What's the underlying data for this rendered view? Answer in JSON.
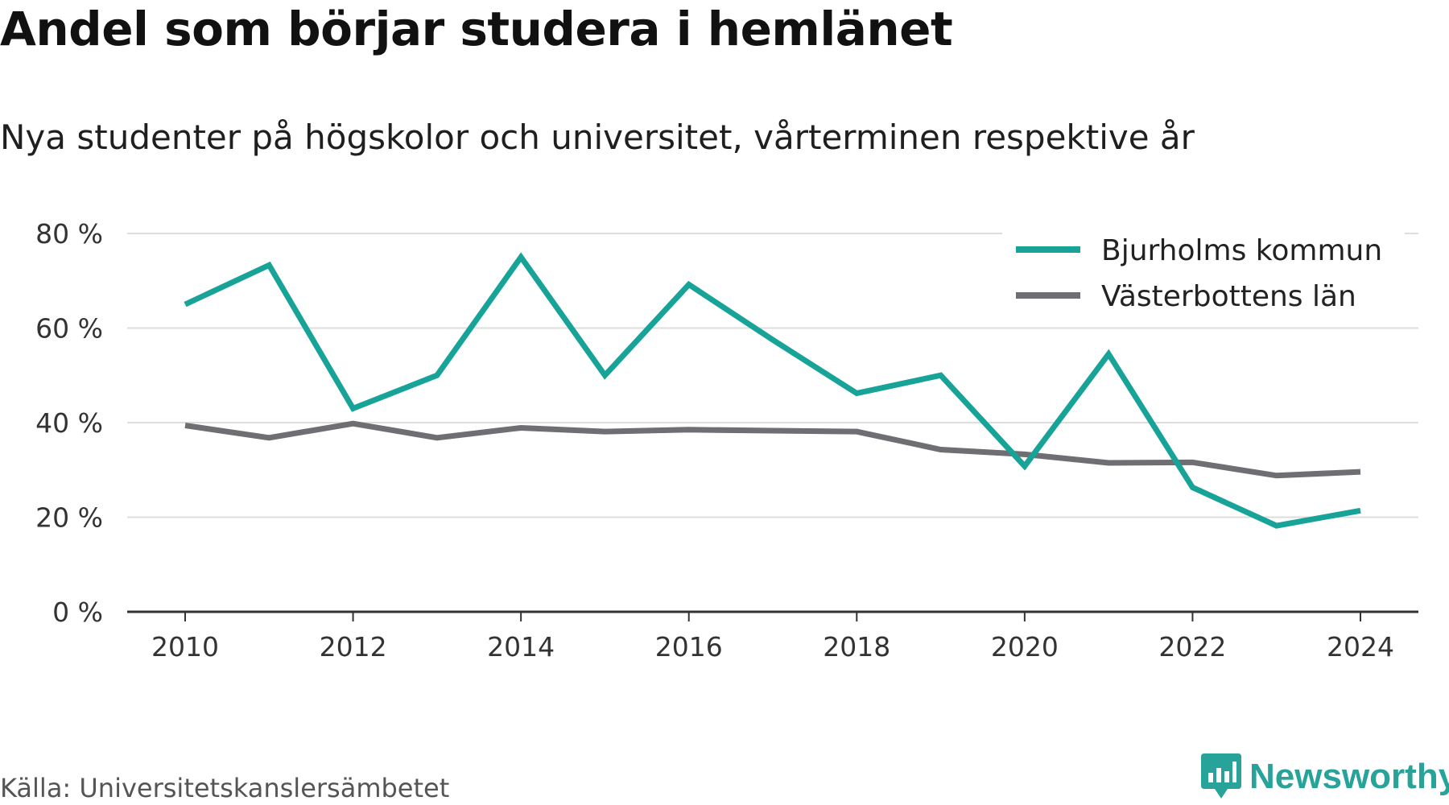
{
  "header": {
    "title": "Andel som börjar studera i hemlänet",
    "subtitle": "Nya studenter på högskolor och universitet, vårterminen respektive år"
  },
  "footer": {
    "source": "Källa: Universitetskanslersämbetet",
    "brand": "Newsworthy",
    "brand_icon": "bar-chart-speech-bubble-icon"
  },
  "colors": {
    "bjurholm": "#17a398",
    "vasterbotten": "#6f6e73",
    "grid": "#dddddd",
    "axis": "#333333",
    "brand": "#27a39a"
  },
  "chart_data": {
    "type": "line",
    "title": "Andel som börjar studera i hemlänet",
    "subtitle": "Nya studenter på högskolor och universitet, vårterminen respektive år",
    "x": [
      2010,
      2011,
      2012,
      2013,
      2014,
      2015,
      2016,
      2017,
      2018,
      2019,
      2020,
      2021,
      2022,
      2023,
      2024
    ],
    "x_ticks": [
      "2010",
      "2012",
      "2014",
      "2016",
      "2018",
      "2020",
      "2022",
      "2024"
    ],
    "y_ticks": [
      "0 %",
      "20 %",
      "40 %",
      "60 %",
      "80 %"
    ],
    "ylim": [
      0,
      80
    ],
    "grid": true,
    "legend_position": "top-right",
    "series": [
      {
        "name": "Bjurholms kommun",
        "values": [
          65,
          73.3,
          43,
          50,
          75,
          50,
          69.2,
          57.5,
          46.2,
          50,
          30.8,
          54.5,
          26.3,
          18.2,
          21.4
        ]
      },
      {
        "name": "Västerbottens län",
        "values": [
          39.4,
          36.8,
          39.8,
          36.8,
          38.9,
          38.1,
          38.5,
          38.3,
          38.1,
          34.3,
          33.3,
          31.5,
          31.6,
          28.8,
          29.6
        ]
      }
    ]
  }
}
